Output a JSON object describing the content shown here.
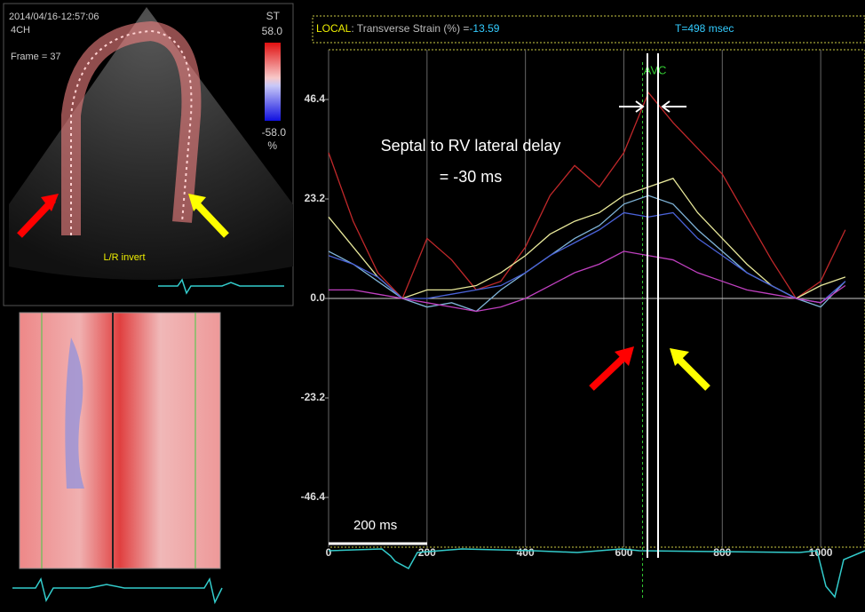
{
  "echo": {
    "timestamp": "2014/04/16-12:57:06",
    "view": "4CH",
    "frame": "Frame = 37",
    "scale_title": "ST",
    "scale_max": "58.0",
    "scale_min": "-58.0",
    "scale_unit": "%",
    "invert_label": "L/R invert"
  },
  "chart_data": {
    "type": "line",
    "header_label": "LOCAL",
    "header_text": ": Transverse Strain (%) =",
    "header_value": "-13.59",
    "time_label": "T=498 msec",
    "annotations": [
      {
        "text": "AVC",
        "x": 638
      },
      {
        "text": "Septal to RV lateral delay"
      },
      {
        "text": "= -30 ms"
      },
      {
        "text": "200 ms"
      }
    ],
    "x": [
      0,
      50,
      100,
      150,
      200,
      250,
      300,
      350,
      400,
      450,
      500,
      550,
      600,
      650,
      700,
      750,
      800,
      850,
      900,
      950,
      1000,
      1050
    ],
    "series": [
      {
        "color": "#c0282a",
        "values": [
          34,
          18,
          6,
          0,
          14,
          9,
          2,
          4,
          12,
          24,
          31,
          26,
          34,
          48,
          41,
          35,
          29,
          19,
          9,
          0,
          4,
          16
        ]
      },
      {
        "color": "#e8e89a",
        "values": [
          19,
          12,
          5,
          0,
          2,
          2,
          3,
          6,
          10,
          15,
          18,
          20,
          24,
          26,
          28,
          20,
          14,
          8,
          3,
          0,
          3,
          5
        ]
      },
      {
        "color": "#7fb4d8",
        "values": [
          11,
          8,
          4,
          0,
          -2,
          -1,
          -3,
          2,
          6,
          10,
          14,
          17,
          22,
          24,
          22,
          16,
          11,
          6,
          3,
          0,
          -2,
          4
        ]
      },
      {
        "color": "#4a62d8",
        "values": [
          10,
          8,
          5,
          0,
          0,
          1,
          2,
          3,
          6,
          10,
          13,
          16,
          20,
          19,
          20,
          14,
          10,
          6,
          3,
          0,
          -1,
          4
        ]
      },
      {
        "color": "#c040c0",
        "values": [
          2,
          2,
          1,
          0,
          -1,
          -2,
          -3,
          -2,
          0,
          3,
          6,
          8,
          11,
          10,
          9,
          6,
          4,
          2,
          1,
          0,
          -1,
          3
        ]
      }
    ],
    "xlim": [
      0,
      1090
    ],
    "ylim": [
      -58,
      58
    ],
    "xticks": [
      0,
      200,
      400,
      600,
      800,
      1000
    ],
    "yticks": [
      46.4,
      23.2,
      {
        "value": 0,
        "label": "0.0"
      },
      -23.2,
      -46.4
    ],
    "grid": true
  }
}
